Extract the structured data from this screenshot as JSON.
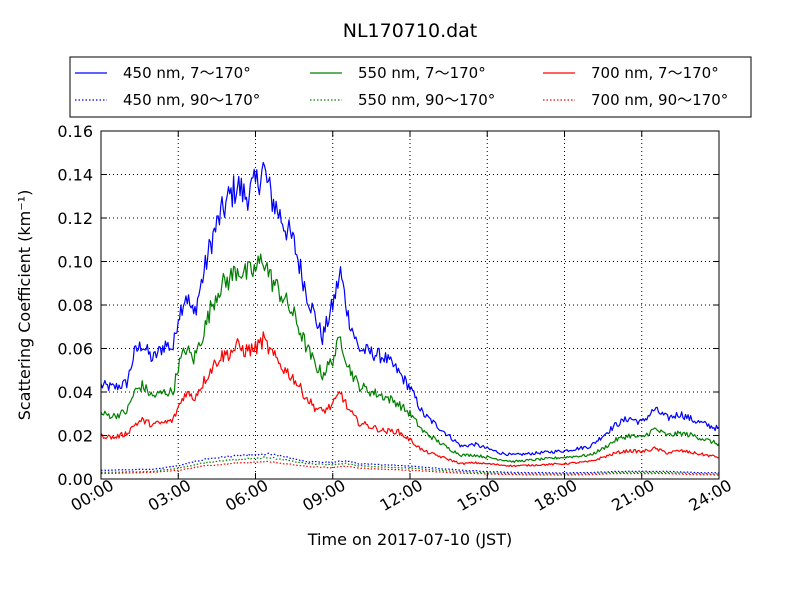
{
  "chart_data": {
    "type": "line",
    "title": "NL170710.dat",
    "xlabel": "Time on 2017-07-10 (JST)",
    "ylabel": "Scattering Coefficient (km⁻¹)",
    "xlim": [
      0,
      24
    ],
    "ylim": [
      0,
      0.16
    ],
    "x_unit": "hours",
    "xticks": [
      0,
      3,
      6,
      9,
      12,
      15,
      18,
      21,
      24
    ],
    "xtick_labels": [
      "00:00",
      "03:00",
      "06:00",
      "09:00",
      "12:00",
      "15:00",
      "18:00",
      "21:00",
      "24:00"
    ],
    "yticks": [
      0.0,
      0.02,
      0.04,
      0.06,
      0.08,
      0.1,
      0.12,
      0.14,
      0.16
    ],
    "ytick_labels": [
      "0.00",
      "0.02",
      "0.04",
      "0.06",
      "0.08",
      "0.10",
      "0.12",
      "0.14",
      "0.16"
    ],
    "grid": true,
    "legend_position": "top",
    "series": [
      {
        "name": "450 nm, 7～170°",
        "color": "#0000ff",
        "style": "solid",
        "x": [
          0,
          0.5,
          1.0,
          1.3,
          1.6,
          2.0,
          2.5,
          2.8,
          3.0,
          3.3,
          3.6,
          4.0,
          4.3,
          4.6,
          5.0,
          5.3,
          5.6,
          6.0,
          6.3,
          6.6,
          7.0,
          7.5,
          8.0,
          8.3,
          8.6,
          9.0,
          9.3,
          9.6,
          10.0,
          10.5,
          11.0,
          11.5,
          12.0,
          12.5,
          13.0,
          13.5,
          14.0,
          14.5,
          15.0,
          15.5,
          16.0,
          17.0,
          18.0,
          19.0,
          19.5,
          20.0,
          20.5,
          21.0,
          21.5,
          22.0,
          22.5,
          23.0,
          23.5,
          24.0
        ],
        "y": [
          0.043,
          0.042,
          0.044,
          0.058,
          0.062,
          0.055,
          0.062,
          0.06,
          0.075,
          0.085,
          0.075,
          0.095,
          0.11,
          0.12,
          0.13,
          0.135,
          0.13,
          0.135,
          0.143,
          0.13,
          0.12,
          0.108,
          0.085,
          0.075,
          0.065,
          0.08,
          0.095,
          0.075,
          0.06,
          0.058,
          0.056,
          0.05,
          0.042,
          0.03,
          0.025,
          0.02,
          0.015,
          0.016,
          0.014,
          0.012,
          0.011,
          0.012,
          0.013,
          0.015,
          0.02,
          0.025,
          0.028,
          0.026,
          0.032,
          0.028,
          0.03,
          0.027,
          0.025,
          0.023
        ]
      },
      {
        "name": "450 nm, 90～170°",
        "color": "#0000ff",
        "style": "dotted",
        "x": [
          0,
          2,
          3,
          4,
          5,
          6,
          6.5,
          7,
          8,
          9,
          9.5,
          10,
          12,
          14,
          16,
          18,
          19,
          20,
          21,
          22,
          23,
          24
        ],
        "y": [
          0.004,
          0.0045,
          0.006,
          0.009,
          0.0105,
          0.011,
          0.0115,
          0.0105,
          0.008,
          0.0075,
          0.0085,
          0.007,
          0.006,
          0.004,
          0.003,
          0.0028,
          0.003,
          0.0035,
          0.0035,
          0.0035,
          0.003,
          0.0028
        ]
      },
      {
        "name": "550 nm, 7～170°",
        "color": "#008000",
        "style": "solid",
        "x": [
          0,
          0.5,
          1.0,
          1.3,
          1.6,
          2.0,
          2.5,
          2.8,
          3.0,
          3.3,
          3.6,
          4.0,
          4.3,
          4.6,
          5.0,
          5.3,
          5.6,
          6.0,
          6.3,
          6.6,
          7.0,
          7.5,
          8.0,
          8.3,
          8.6,
          9.0,
          9.3,
          9.6,
          10.0,
          10.5,
          11.0,
          11.5,
          12.0,
          12.5,
          13.0,
          13.5,
          14.0,
          14.5,
          15.0,
          15.5,
          16.0,
          17.0,
          18.0,
          19.0,
          19.5,
          20.0,
          20.5,
          21.0,
          21.5,
          22.0,
          22.5,
          23.0,
          23.5,
          24.0
        ],
        "y": [
          0.03,
          0.029,
          0.031,
          0.04,
          0.043,
          0.038,
          0.04,
          0.04,
          0.052,
          0.06,
          0.055,
          0.068,
          0.08,
          0.088,
          0.092,
          0.097,
          0.094,
          0.096,
          0.102,
          0.092,
          0.085,
          0.075,
          0.06,
          0.053,
          0.048,
          0.055,
          0.065,
          0.052,
          0.043,
          0.04,
          0.038,
          0.035,
          0.03,
          0.022,
          0.018,
          0.014,
          0.011,
          0.011,
          0.01,
          0.009,
          0.008,
          0.009,
          0.01,
          0.011,
          0.014,
          0.018,
          0.02,
          0.019,
          0.023,
          0.02,
          0.021,
          0.02,
          0.018,
          0.016
        ]
      },
      {
        "name": "550 nm, 90～170°",
        "color": "#008000",
        "style": "dotted",
        "x": [
          0,
          2,
          3,
          4,
          5,
          6,
          6.5,
          7,
          8,
          9,
          9.5,
          10,
          12,
          14,
          16,
          18,
          19,
          20,
          21,
          22,
          23,
          24
        ],
        "y": [
          0.003,
          0.0035,
          0.005,
          0.0075,
          0.0088,
          0.0095,
          0.01,
          0.009,
          0.007,
          0.0065,
          0.0072,
          0.006,
          0.005,
          0.0033,
          0.0025,
          0.0023,
          0.0025,
          0.003,
          0.003,
          0.003,
          0.0025,
          0.0023
        ]
      },
      {
        "name": "700 nm, 7～170°",
        "color": "#ff0000",
        "style": "solid",
        "x": [
          0,
          0.5,
          1.0,
          1.3,
          1.6,
          2.0,
          2.5,
          2.8,
          3.0,
          3.3,
          3.6,
          4.0,
          4.3,
          4.6,
          5.0,
          5.3,
          5.6,
          6.0,
          6.3,
          6.6,
          7.0,
          7.5,
          8.0,
          8.3,
          8.6,
          9.0,
          9.3,
          9.6,
          10.0,
          10.5,
          11.0,
          11.5,
          12.0,
          12.5,
          13.0,
          13.5,
          14.0,
          14.5,
          15.0,
          15.5,
          16.0,
          17.0,
          18.0,
          19.0,
          19.5,
          20.0,
          20.5,
          21.0,
          21.5,
          22.0,
          22.5,
          23.0,
          23.5,
          24.0
        ],
        "y": [
          0.02,
          0.019,
          0.021,
          0.025,
          0.027,
          0.025,
          0.026,
          0.027,
          0.033,
          0.04,
          0.037,
          0.045,
          0.051,
          0.056,
          0.058,
          0.061,
          0.059,
          0.06,
          0.064,
          0.058,
          0.052,
          0.046,
          0.037,
          0.033,
          0.031,
          0.034,
          0.04,
          0.032,
          0.026,
          0.024,
          0.022,
          0.022,
          0.018,
          0.013,
          0.011,
          0.009,
          0.007,
          0.0075,
          0.007,
          0.0065,
          0.006,
          0.0065,
          0.007,
          0.008,
          0.01,
          0.012,
          0.013,
          0.0125,
          0.014,
          0.012,
          0.013,
          0.012,
          0.011,
          0.01
        ]
      },
      {
        "name": "700 nm, 90～170°",
        "color": "#ff0000",
        "style": "dotted",
        "x": [
          0,
          2,
          3,
          4,
          5,
          6,
          6.5,
          7,
          8,
          9,
          9.5,
          10,
          12,
          14,
          16,
          18,
          19,
          20,
          21,
          22,
          23,
          24
        ],
        "y": [
          0.0025,
          0.003,
          0.004,
          0.006,
          0.007,
          0.0078,
          0.008,
          0.0073,
          0.0057,
          0.0052,
          0.006,
          0.005,
          0.004,
          0.0027,
          0.002,
          0.0018,
          0.002,
          0.0025,
          0.0025,
          0.0025,
          0.002,
          0.0018
        ]
      }
    ]
  }
}
